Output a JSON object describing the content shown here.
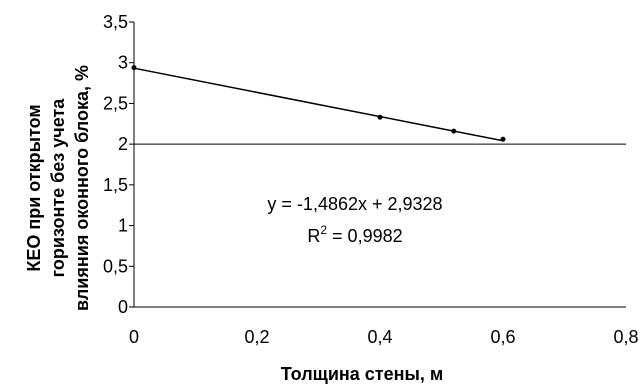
{
  "chart_data": {
    "type": "scatter",
    "title": "",
    "xlabel": "Толщина стены, м",
    "ylabel_lines": [
      "КЕО при открытом",
      "горизонте без учета",
      "влияния оконного блока, %"
    ],
    "xlim": [
      0,
      0.8
    ],
    "ylim": [
      0,
      3.5
    ],
    "x_ticks": [
      0,
      0.2,
      0.4,
      0.6,
      0.8
    ],
    "x_tick_labels": [
      "0",
      "0,2",
      "0,4",
      "0,6",
      "0,8"
    ],
    "y_ticks": [
      0,
      0.5,
      1,
      1.5,
      2,
      2.5,
      3,
      3.5
    ],
    "y_tick_labels": [
      "0",
      "0,5",
      "1",
      "1,5",
      "2",
      "2,5",
      "3",
      "3,5"
    ],
    "grid_y_at": 2,
    "series": [
      {
        "x": [
          0,
          0.4,
          0.52,
          0.6
        ],
        "y": [
          2.94,
          2.33,
          2.16,
          2.06
        ],
        "marker_color": "#000000"
      }
    ],
    "trendline": {
      "slope": -1.4862,
      "intercept": 2.9328,
      "x_range": [
        0,
        0.6
      ],
      "color": "#000000",
      "equation": "y = -1,4862x + 2,9328",
      "r2_prefix": "R",
      "r2_sup": "2",
      "r2_value": " = 0,9982"
    }
  }
}
